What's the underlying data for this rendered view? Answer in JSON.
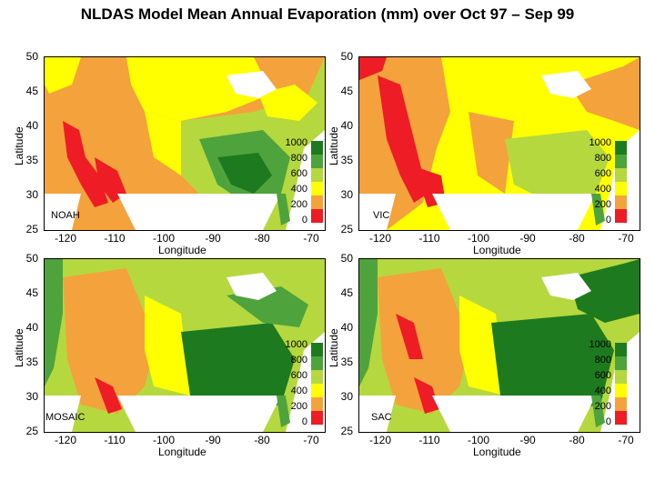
{
  "title": "NLDAS Model Mean Annual Evaporation (mm) over Oct 97 – Sep 99",
  "axes": {
    "xlabel": "Longitude",
    "ylabel": "Latitude",
    "x_ticks": [
      "-120",
      "-110",
      "-100",
      "-90",
      "-80",
      "-70"
    ],
    "y_ticks": [
      "50",
      "45",
      "40",
      "35",
      "30",
      "25"
    ]
  },
  "legend": {
    "labels": [
      "1000",
      "800",
      "600",
      "400",
      "200",
      "0"
    ],
    "colors": [
      "#1e7a1e",
      "#4fa33c",
      "#b5d83f",
      "#ffff00",
      "#f4a23c",
      "#ee1c24"
    ]
  },
  "colors": {
    "water": "#ffffff",
    "red": "#ee1c24",
    "orange": "#f4a23c",
    "yellow": "#ffff00",
    "lightgreen": "#b5d83f",
    "green": "#4fa33c",
    "darkgreen": "#1e7a1e"
  },
  "panels": [
    {
      "model": "NOAH"
    },
    {
      "model": "VIC"
    },
    {
      "model": "MOSAIC"
    },
    {
      "model": "SAC"
    }
  ],
  "chart_data": {
    "type": "heatmap",
    "title": "NLDAS Model Mean Annual Evaporation (mm) over Oct 97 – Sep 99",
    "xlabel": "Longitude",
    "ylabel": "Latitude",
    "xlim": [
      -125,
      -67
    ],
    "ylim": [
      25,
      50
    ],
    "colorbar": {
      "min": 0,
      "max": 1000,
      "step": 200,
      "units": "mm"
    },
    "series": [
      {
        "name": "NOAH",
        "description_levels": {
          "west": 300,
          "plains": 500,
          "east": 700
        }
      },
      {
        "name": "VIC",
        "description_levels": {
          "west": 250,
          "plains": 550,
          "east": 600
        }
      },
      {
        "name": "MOSAIC",
        "description_levels": {
          "west": 450,
          "plains": 550,
          "east": 900
        }
      },
      {
        "name": "SAC",
        "description_levels": {
          "west": 350,
          "plains": 550,
          "east": 900
        }
      }
    ]
  }
}
